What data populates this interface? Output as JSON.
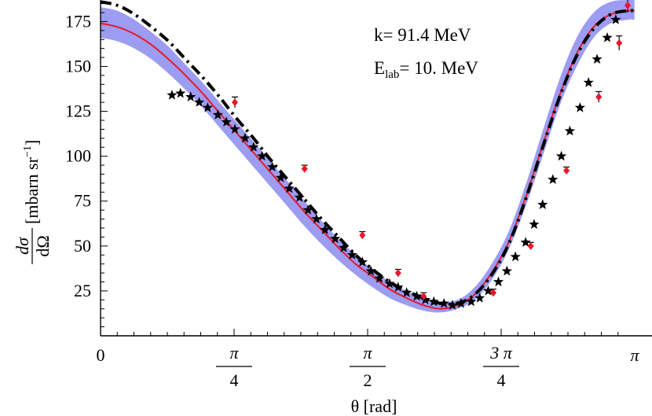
{
  "chart_data": {
    "type": "line",
    "title": "",
    "xlabel": "θ [rad]",
    "ylabel_parts": {
      "numerator": "dσ",
      "denominator": "dΩ",
      "unit": "[mbarn sr",
      "unit_exp": "−1",
      "unit_close": "]"
    },
    "xlim": [
      0,
      3.14159
    ],
    "ylim": [
      0,
      187
    ],
    "y_ticks": [
      25,
      50,
      75,
      100,
      125,
      150,
      175
    ],
    "x_ticks": [
      {
        "value": 0,
        "label": "0",
        "frac": false
      },
      {
        "value": 0.7854,
        "num": "π",
        "den": "4",
        "frac": true
      },
      {
        "value": 1.5708,
        "num": "π",
        "den": "2",
        "frac": true
      },
      {
        "value": 2.3562,
        "num": "3 π",
        "den": "4",
        "frac": true
      },
      {
        "value": 3.14159,
        "label": "π",
        "frac": false
      }
    ],
    "annotations": {
      "k": "k= 91.4 MeV",
      "elab_main": "E",
      "elab_sub": "lab",
      "elab_rest": "= 10. MeV"
    },
    "series": [
      {
        "name": "band",
        "style": "band",
        "color": "#8080ee",
        "x": [
          0,
          0.1,
          0.2,
          0.3,
          0.4,
          0.5,
          0.6,
          0.7,
          0.8,
          0.9,
          1.0,
          1.1,
          1.2,
          1.3,
          1.4,
          1.5,
          1.6,
          1.7,
          1.8,
          1.9,
          2.0,
          2.1,
          2.2,
          2.3,
          2.4,
          2.5,
          2.6,
          2.7,
          2.8,
          2.9,
          3.0,
          3.1,
          3.14
        ],
        "lower": [
          166,
          164,
          160,
          154,
          146,
          137,
          127,
          116,
          105,
          94,
          83,
          72,
          61,
          51,
          42,
          34,
          27,
          21,
          17,
          14,
          13,
          15,
          20,
          31,
          48,
          72,
          100,
          128,
          150,
          166,
          174,
          176,
          176
        ],
        "upper": [
          183,
          181,
          176,
          169,
          161,
          151,
          141,
          130,
          119,
          108,
          97,
          86,
          75,
          64,
          54,
          45,
          37,
          30,
          25,
          21,
          19,
          20,
          27,
          40,
          58,
          84,
          114,
          143,
          166,
          180,
          186,
          187,
          187
        ]
      },
      {
        "name": "central",
        "style": "solid",
        "color": "#e8182a",
        "x": [
          0,
          0.1,
          0.2,
          0.3,
          0.4,
          0.5,
          0.6,
          0.7,
          0.8,
          0.9,
          1.0,
          1.1,
          1.2,
          1.3,
          1.4,
          1.5,
          1.6,
          1.7,
          1.8,
          1.9,
          2.0,
          2.1,
          2.2,
          2.3,
          2.4,
          2.5,
          2.6,
          2.7,
          2.8,
          2.9,
          3.0,
          3.1,
          3.14
        ],
        "y": [
          174,
          172,
          168,
          162,
          154,
          145,
          135,
          124,
          113,
          102,
          91,
          80,
          69,
          59,
          49,
          40,
          33,
          26,
          21,
          17,
          15,
          17,
          23,
          35,
          52,
          77,
          106,
          134,
          157,
          172,
          179,
          181,
          181
        ]
      },
      {
        "name": "dash-dot",
        "style": "dashdot",
        "color": "#000000",
        "x": [
          0,
          0.1,
          0.2,
          0.3,
          0.4,
          0.5,
          0.6,
          0.7,
          0.8,
          0.9,
          1.0,
          1.1,
          1.2,
          1.3,
          1.4,
          1.5,
          1.6,
          1.7,
          1.8,
          1.9,
          2.0,
          2.1,
          2.2,
          2.3,
          2.4,
          2.5,
          2.6,
          2.7,
          2.8,
          2.9,
          3.0,
          3.1,
          3.14
        ],
        "y": [
          186,
          184,
          179,
          172,
          164,
          154,
          144,
          133,
          121,
          110,
          98,
          87,
          76,
          65,
          55,
          45,
          37,
          30,
          25,
          21,
          18,
          18,
          23,
          34,
          51,
          76,
          105,
          133,
          156,
          171,
          179,
          181,
          181
        ]
      }
    ],
    "points_red": {
      "color": "#e8182a",
      "x": [
        0.79,
        1.2,
        1.54,
        1.75,
        1.9,
        2.31,
        2.53,
        2.74,
        2.93,
        3.05,
        3.1
      ],
      "y": [
        130,
        93,
        56,
        35,
        22,
        24,
        50,
        92,
        133,
        163,
        184
      ],
      "err": [
        3,
        2,
        2,
        2,
        2,
        2,
        2,
        2,
        3,
        4,
        4
      ]
    },
    "points_star": {
      "color": "#000000",
      "x": [
        0.42,
        0.47,
        0.53,
        0.58,
        0.63,
        0.69,
        0.74,
        0.79,
        0.85,
        0.9,
        0.95,
        1.01,
        1.06,
        1.11,
        1.17,
        1.22,
        1.27,
        1.32,
        1.38,
        1.43,
        1.48,
        1.54,
        1.59,
        1.64,
        1.7,
        1.75,
        1.8,
        1.86,
        1.91,
        1.96,
        2.02,
        2.07,
        2.12,
        2.18,
        2.23,
        2.28,
        2.34,
        2.39,
        2.44,
        2.5,
        2.55,
        2.6,
        2.66,
        2.71,
        2.76,
        2.82,
        2.87,
        2.92,
        2.98,
        3.03
      ],
      "y": [
        134,
        135,
        133,
        130,
        127,
        123,
        119,
        115,
        110,
        105,
        100,
        94,
        88,
        82,
        77,
        70,
        65,
        59,
        54,
        49,
        45,
        41,
        36,
        32,
        29,
        27,
        24,
        22,
        20,
        19,
        18,
        17,
        18,
        19,
        21,
        25,
        30,
        36,
        44,
        52,
        62,
        73,
        87,
        100,
        114,
        127,
        141,
        154,
        166,
        176
      ]
    }
  }
}
